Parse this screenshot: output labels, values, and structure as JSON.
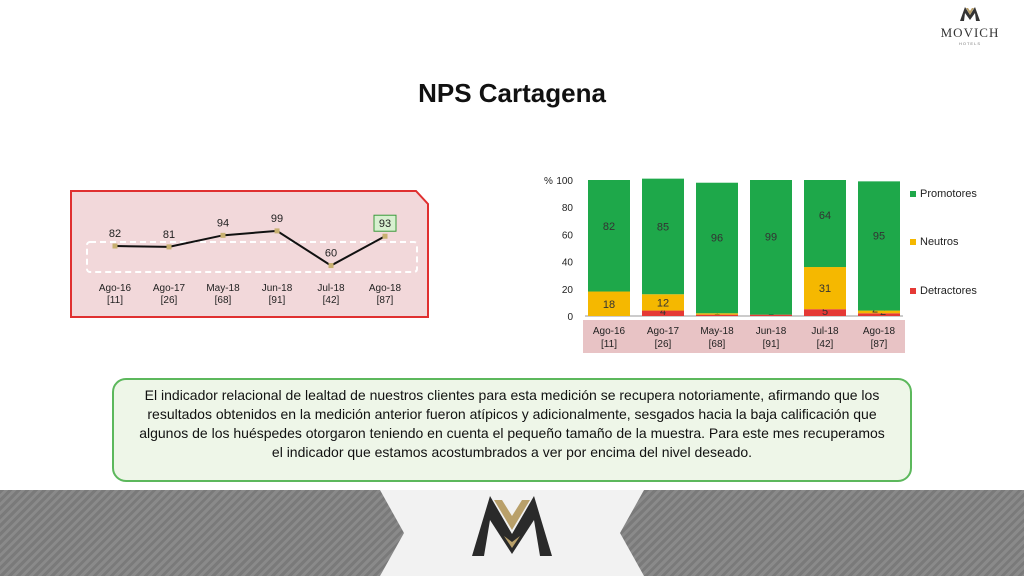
{
  "header": {
    "brand": "MOVICH",
    "brand_sub": "HOTELS",
    "title": "NPS Cartagena"
  },
  "chart_data": [
    {
      "type": "line",
      "categories": [
        "Ago-16",
        "Ago-17",
        "May-18",
        "Jun-18",
        "Jul-18",
        "Ago-18"
      ],
      "category_counts": [
        "[11]",
        "[26]",
        "[68]",
        "[91]",
        "[42]",
        "[87]"
      ],
      "values": [
        82,
        81,
        94,
        99,
        60,
        93
      ],
      "highlight_last": true,
      "colors": {
        "line": "#111111",
        "marker": "#c8b070",
        "panel": "#f2d8da",
        "border": "#e03030",
        "highlight": "#d8f0d0"
      }
    },
    {
      "type": "bar",
      "stacked": true,
      "categories": [
        "Ago-16",
        "Ago-17",
        "May-18",
        "Jun-18",
        "Jul-18",
        "Ago-18"
      ],
      "category_counts": [
        "[11]",
        "[26]",
        "[68]",
        "[91]",
        "[42]",
        "[87]"
      ],
      "ylabel": "%",
      "ylim": [
        0,
        100
      ],
      "yticks": [
        0,
        20,
        40,
        60,
        80,
        100
      ],
      "legend_position": "right",
      "series": [
        {
          "name": "Detractores",
          "color": "#e53935",
          "values": [
            0,
            4,
            1,
            1,
            5,
            2
          ],
          "labels": [
            "",
            "4",
            "1",
            "1",
            "5",
            "2"
          ]
        },
        {
          "name": "Neutros",
          "color": "#f5b800",
          "values": [
            18,
            12,
            1,
            0,
            31,
            2
          ],
          "labels": [
            "18",
            "12",
            "",
            "",
            "31",
            "2"
          ]
        },
        {
          "name": "Promotores",
          "color": "#1ea84a",
          "values": [
            82,
            85,
            96,
            99,
            64,
            95
          ],
          "labels": [
            "82",
            "85",
            "96",
            "99",
            "64",
            "95"
          ]
        }
      ]
    }
  ],
  "note": {
    "text": "El indicador relacional de lealtad de nuestros clientes para esta medición se recupera notoriamente, afirmando que los resultados obtenidos en la medición anterior fueron atípicos y adicionalmente, sesgados hacia la baja calificación que algunos de los huéspedes otorgaron teniendo en cuenta el pequeño tamaño de la muestra.  Para este mes recuperamos el indicador que estamos acostumbrados a ver por encima del nivel deseado."
  }
}
